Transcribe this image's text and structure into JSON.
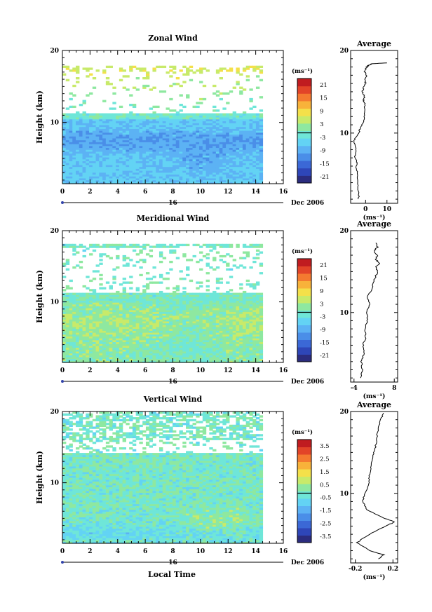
{
  "figure": {
    "date_label": "Dec 2006",
    "day_label": "16",
    "xlabel": "Local Time",
    "colors": {
      "palette": [
        "#2b2c7e",
        "#2e46b8",
        "#3b68d6",
        "#4a8ee8",
        "#5cb2f4",
        "#63d3f4",
        "#6fe6d8",
        "#8ee8a0",
        "#c8ea6a",
        "#f4e04a",
        "#f8b23a",
        "#f47a30",
        "#e24428",
        "#c01c20"
      ]
    }
  },
  "chart_data": [
    {
      "id": "zonal",
      "type": "heatmap",
      "title": "Zonal Wind",
      "ylabel": "Height (km)",
      "xlim": [
        0,
        16
      ],
      "ylim": [
        1.5,
        20
      ],
      "xticks": [
        "0",
        "2",
        "4",
        "6",
        "8",
        "10",
        "12",
        "14",
        "16"
      ],
      "yticks": [
        "10",
        "20"
      ],
      "data_extent_hours": [
        0,
        14.5
      ],
      "colorbar_unit": "(ms⁻¹)",
      "colorbar_levels": [
        "21",
        "15",
        "9",
        "3",
        "-3",
        "-9",
        "-15",
        "-21"
      ],
      "colorbar_range": [
        -24,
        24
      ],
      "profile": {
        "title": "Average",
        "xlabel": "(ms⁻¹)",
        "xticks": [
          "0",
          "10"
        ],
        "xlim": [
          -7,
          15
        ],
        "points": [
          [
            -3.2,
            2
          ],
          [
            -3.4,
            3
          ],
          [
            -4,
            4
          ],
          [
            -3.5,
            5
          ],
          [
            -4.5,
            6
          ],
          [
            -4,
            6.5
          ],
          [
            -5,
            7
          ],
          [
            -4.5,
            8
          ],
          [
            -5.5,
            9
          ],
          [
            -4.5,
            9.5
          ],
          [
            -3,
            10.2
          ],
          [
            -2,
            10.8
          ],
          [
            -1,
            11.5
          ],
          [
            -0.5,
            12.5
          ],
          [
            -0.2,
            13.5
          ],
          [
            -1,
            14
          ],
          [
            -0.5,
            14.5
          ],
          [
            -1.5,
            15
          ],
          [
            -1,
            15.5
          ],
          [
            0,
            16
          ],
          [
            -0.5,
            16.5
          ],
          [
            0.5,
            17
          ],
          [
            -0.5,
            17.5
          ],
          [
            0.5,
            18
          ],
          [
            1.5,
            18.2
          ],
          [
            3,
            18.4
          ],
          [
            10,
            18.5
          ]
        ]
      }
    },
    {
      "id": "meridional",
      "type": "heatmap",
      "title": "Meridional Wind",
      "ylabel": "Height (km)",
      "xlim": [
        0,
        16
      ],
      "ylim": [
        1.5,
        20
      ],
      "xticks": [
        "0",
        "2",
        "4",
        "6",
        "8",
        "10",
        "12",
        "14",
        "16"
      ],
      "yticks": [
        "10",
        "20"
      ],
      "data_extent_hours": [
        0,
        14.5
      ],
      "colorbar_unit": "(ms⁻¹)",
      "colorbar_levels": [
        "21",
        "15",
        "9",
        "3",
        "-3",
        "-9",
        "-15",
        "-21"
      ],
      "colorbar_range": [
        -24,
        24
      ],
      "profile": {
        "title": "Average",
        "xlabel": "(ms⁻¹)",
        "xticks": [
          "-4",
          "8"
        ],
        "xlim": [
          -5,
          9
        ],
        "points": [
          [
            -2,
            2
          ],
          [
            -1.5,
            3
          ],
          [
            -1.8,
            4
          ],
          [
            -1,
            5
          ],
          [
            -1.3,
            6
          ],
          [
            -0.5,
            7
          ],
          [
            -0.8,
            8
          ],
          [
            0,
            9
          ],
          [
            -0.2,
            10
          ],
          [
            0.5,
            11
          ],
          [
            0,
            12
          ],
          [
            1.5,
            13
          ],
          [
            2,
            14
          ],
          [
            3,
            15
          ],
          [
            2.5,
            15.5
          ],
          [
            3.5,
            16
          ],
          [
            2.5,
            16.5
          ],
          [
            3,
            17
          ],
          [
            2,
            17.5
          ],
          [
            3,
            18
          ],
          [
            2.5,
            18.5
          ]
        ]
      }
    },
    {
      "id": "vertical",
      "type": "heatmap",
      "title": "Vertical Wind",
      "ylabel": "Height (km)",
      "xlim": [
        0,
        16
      ],
      "ylim": [
        1.5,
        20
      ],
      "xticks": [
        "0",
        "2",
        "4",
        "6",
        "8",
        "10",
        "12",
        "14",
        "16"
      ],
      "yticks": [
        "10",
        "20"
      ],
      "data_extent_hours": [
        0,
        14.5
      ],
      "colorbar_unit": "(ms⁻¹)",
      "colorbar_levels": [
        "3.5",
        "2.5",
        "1.5",
        "0.5",
        "-0.5",
        "-1.5",
        "-2.5",
        "-3.5"
      ],
      "colorbar_range": [
        -4,
        4
      ],
      "profile": {
        "title": "Average",
        "xlabel": "(ms⁻¹)",
        "xticks": [
          "-0.2",
          "0.2"
        ],
        "xlim": [
          -0.25,
          0.25
        ],
        "points": [
          [
            0.05,
            2
          ],
          [
            0.1,
            2.5
          ],
          [
            -0.05,
            3
          ],
          [
            -0.18,
            4
          ],
          [
            -0.05,
            5
          ],
          [
            0.12,
            6
          ],
          [
            0.22,
            6.5
          ],
          [
            0.1,
            7
          ],
          [
            -0.08,
            8
          ],
          [
            -0.12,
            9
          ],
          [
            -0.1,
            10
          ],
          [
            -0.06,
            11
          ],
          [
            -0.05,
            12
          ],
          [
            -0.04,
            13
          ],
          [
            -0.02,
            14
          ],
          [
            0,
            15
          ],
          [
            0.02,
            16
          ],
          [
            0.03,
            17
          ],
          [
            0.05,
            18
          ],
          [
            0.07,
            19
          ],
          [
            0.1,
            19.8
          ]
        ]
      }
    }
  ]
}
